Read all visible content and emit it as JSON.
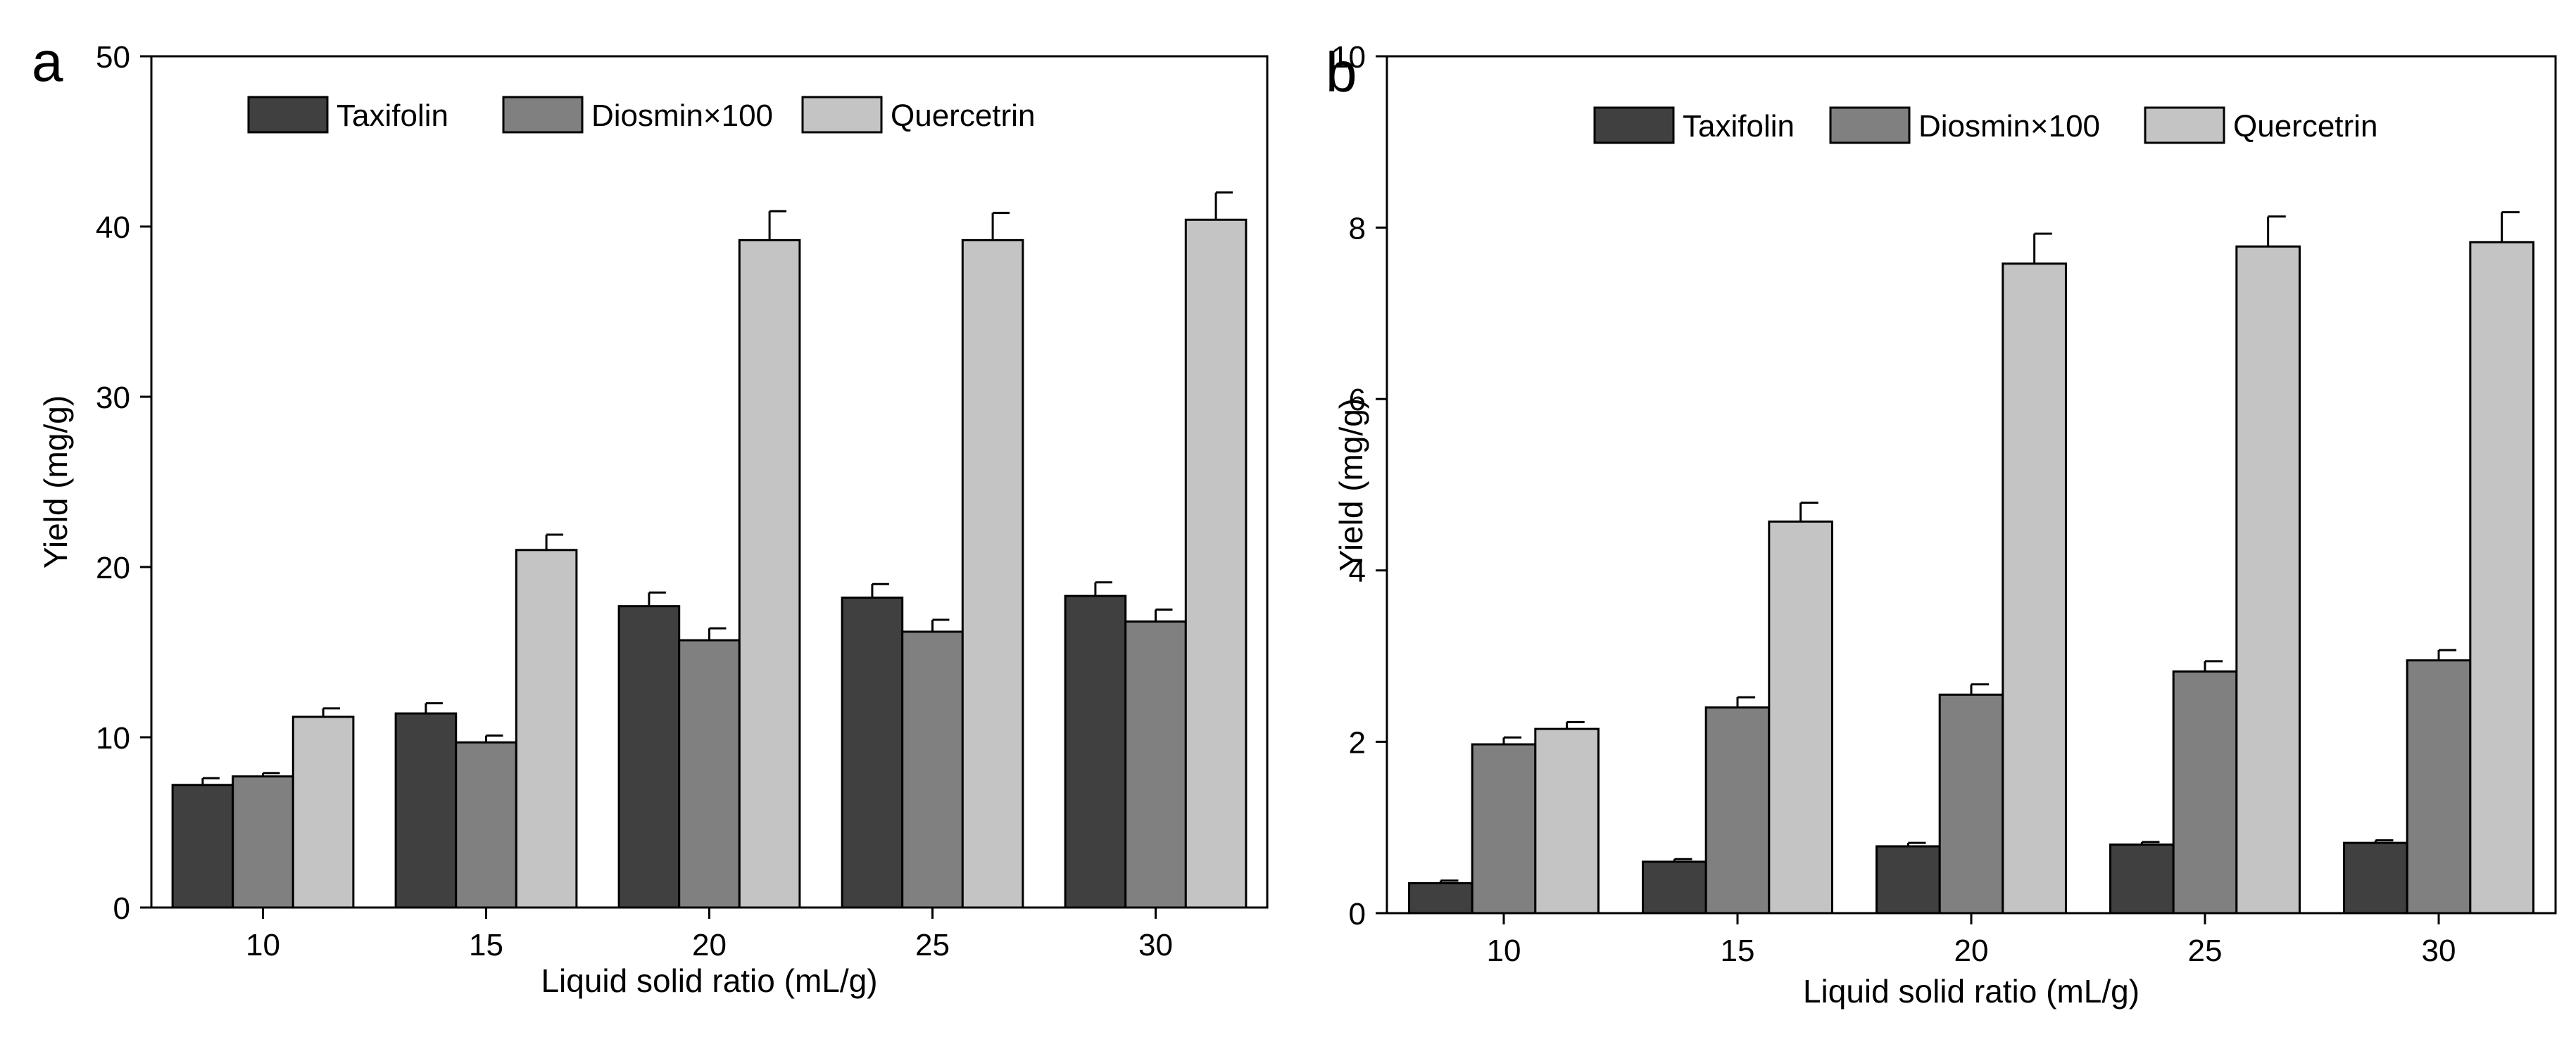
{
  "chart_data": [
    {
      "panel_label": "a",
      "type": "bar",
      "title": "",
      "xlabel": "Liquid solid ratio (mL/g)",
      "ylabel": "Yield (mg/g)",
      "ylim": [
        0,
        50
      ],
      "yticks": [
        "0",
        "10",
        "20",
        "30",
        "40",
        "50"
      ],
      "categories": [
        "10",
        "15",
        "20",
        "25",
        "30"
      ],
      "legend_position": "top",
      "series": [
        {
          "name": "Taxifolin",
          "color": "#404040",
          "values": [
            7.2,
            11.4,
            17.7,
            18.2,
            18.3
          ],
          "errors": [
            0.4,
            0.6,
            0.8,
            0.8,
            0.8
          ]
        },
        {
          "name": "Diosmin×100",
          "color": "#808080",
          "values": [
            7.7,
            9.7,
            15.7,
            16.2,
            16.8
          ],
          "errors": [
            0.2,
            0.4,
            0.7,
            0.7,
            0.7
          ]
        },
        {
          "name": "Quercetrin",
          "color": "#c4c4c4",
          "values": [
            11.2,
            21.0,
            39.2,
            39.2,
            40.4
          ],
          "errors": [
            0.5,
            0.9,
            1.7,
            1.6,
            1.6
          ]
        }
      ]
    },
    {
      "panel_label": "b",
      "type": "bar",
      "title": "",
      "xlabel": "Liquid solid ratio (mL/g)",
      "ylabel": "Yield (mg/g)",
      "ylim": [
        0,
        10
      ],
      "yticks": [
        "0",
        "2",
        "4",
        "6",
        "8",
        "10"
      ],
      "categories": [
        "10",
        "15",
        "20",
        "25",
        "30"
      ],
      "legend_position": "top",
      "series": [
        {
          "name": "Taxifolin",
          "color": "#404040",
          "values": [
            0.35,
            0.6,
            0.78,
            0.8,
            0.82
          ],
          "errors": [
            0.03,
            0.03,
            0.04,
            0.03,
            0.03
          ]
        },
        {
          "name": "Diosmin×100",
          "color": "#808080",
          "values": [
            1.97,
            2.4,
            2.55,
            2.82,
            2.95
          ],
          "errors": [
            0.08,
            0.12,
            0.12,
            0.12,
            0.12
          ]
        },
        {
          "name": "Quercetrin",
          "color": "#c4c4c4",
          "values": [
            2.15,
            4.57,
            7.58,
            7.78,
            7.83
          ],
          "errors": [
            0.08,
            0.22,
            0.35,
            0.35,
            0.35
          ]
        }
      ]
    }
  ]
}
